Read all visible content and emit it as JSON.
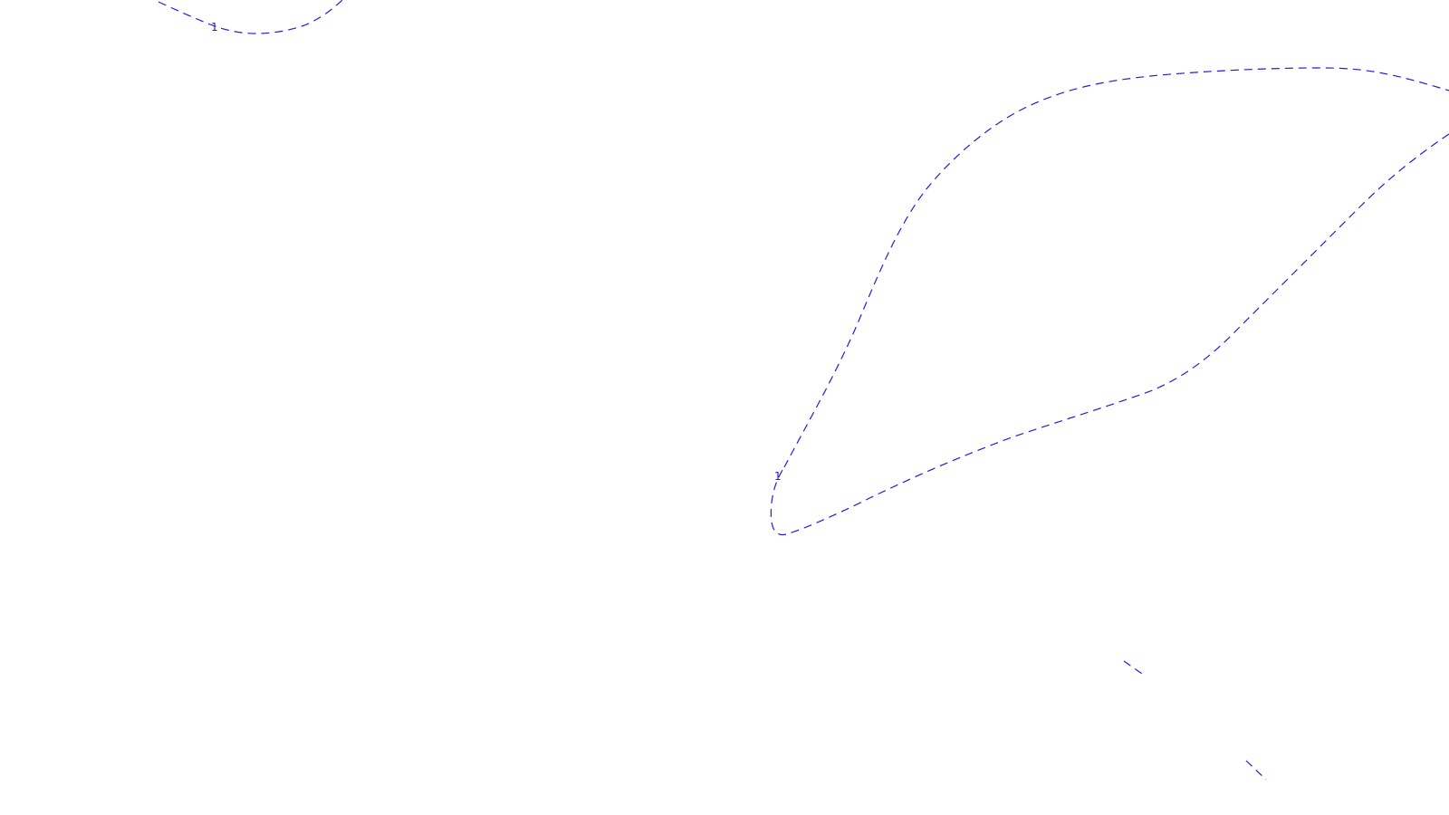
{
  "map": {
    "contour_color": "#1f1fe0",
    "contour_style": "dashed",
    "contours": [
      {
        "level_label": "1"
      },
      {
        "level_label": "1"
      }
    ]
  }
}
